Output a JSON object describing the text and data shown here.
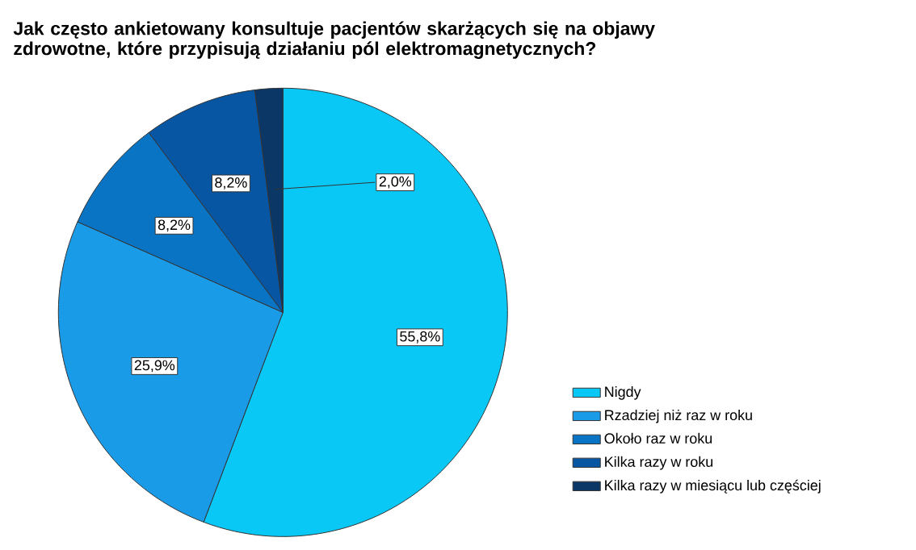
{
  "chart_data": {
    "type": "pie",
    "title": "Jak często ankietowany konsultuje pacjentów skarżących się na objawy zdrowotne, które przypisują działaniu pól elektromagnetycznych?",
    "categories": [
      "Nigdy",
      "Rzadziej niż raz w roku",
      "Około raz w roku",
      "Kilka razy w roku",
      "Kilka razy w miesiącu lub częściej"
    ],
    "values": [
      55.8,
      25.9,
      8.2,
      8.2,
      2.0
    ],
    "value_labels": [
      "55,8%",
      "25,9%",
      "8,2%",
      "8,2%",
      "2,0%"
    ],
    "colors": [
      "#0ac8f5",
      "#1a9be8",
      "#0a74c4",
      "#0656a3",
      "#0b3766"
    ],
    "legend": "bottom right"
  }
}
